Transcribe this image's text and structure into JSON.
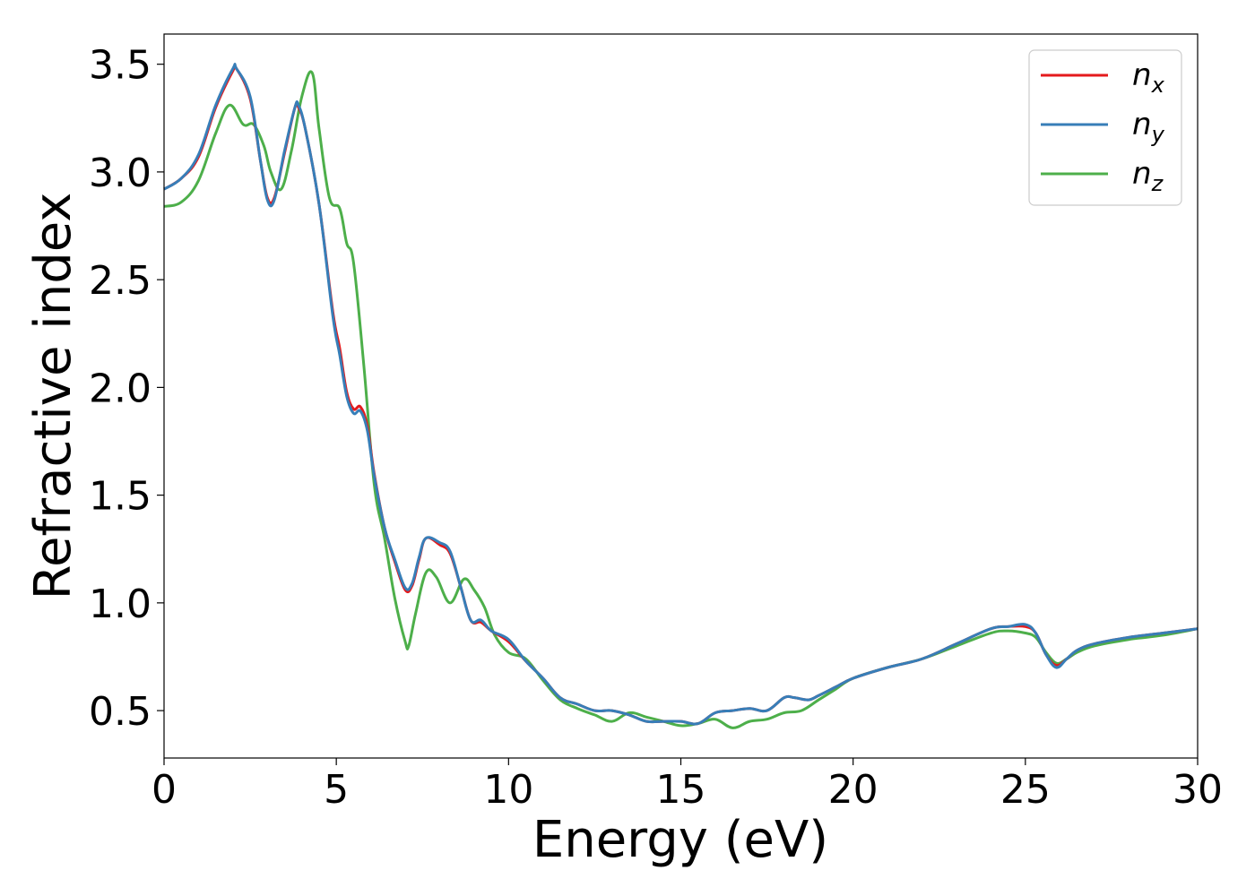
{
  "chart_data": {
    "type": "line",
    "title": "",
    "xlabel": "Energy (eV)",
    "ylabel": "Refractive index",
    "xlim": [
      0,
      30
    ],
    "ylim": [
      0.28,
      3.64
    ],
    "xticks": [
      0,
      5,
      10,
      15,
      20,
      25,
      30
    ],
    "xtick_labels": [
      "0",
      "5",
      "10",
      "15",
      "20",
      "25",
      "30"
    ],
    "yticks": [
      0.5,
      1.0,
      1.5,
      2.0,
      2.5,
      3.0,
      3.5
    ],
    "ytick_labels": [
      "0.5",
      "1.0",
      "1.5",
      "2.0",
      "2.5",
      "3.0",
      "3.5"
    ],
    "grid": false,
    "legend_position": "top-right",
    "series": [
      {
        "name": "n_x",
        "legend_main": "n",
        "legend_sub": "x",
        "color": "#e41a1c",
        "x": [
          0,
          0.5,
          1,
          1.5,
          2,
          2.1,
          2.5,
          2.8,
          3.0,
          3.2,
          3.5,
          3.8,
          3.9,
          4.1,
          4.5,
          4.9,
          5.1,
          5.3,
          5.5,
          5.7,
          5.9,
          6.1,
          6.4,
          6.7,
          7.0,
          7.2,
          7.4,
          7.6,
          8.0,
          8.3,
          8.6,
          8.9,
          9.2,
          9.5,
          10,
          10.5,
          11,
          11.5,
          12,
          12.5,
          13,
          13.5,
          14,
          14.5,
          15,
          15.5,
          16,
          16.5,
          17,
          17.5,
          18,
          18.3,
          18.7,
          19,
          19.5,
          20,
          21,
          22,
          23,
          24,
          24.5,
          25,
          25.3,
          25.6,
          25.9,
          26.2,
          26.5,
          27,
          28,
          29,
          30
        ],
        "y": [
          2.92,
          2.97,
          3.07,
          3.3,
          3.47,
          3.48,
          3.34,
          3.05,
          2.88,
          2.88,
          3.09,
          3.3,
          3.3,
          3.2,
          2.85,
          2.35,
          2.18,
          1.98,
          1.9,
          1.91,
          1.82,
          1.6,
          1.35,
          1.19,
          1.06,
          1.08,
          1.2,
          1.3,
          1.27,
          1.23,
          1.08,
          0.92,
          0.91,
          0.87,
          0.82,
          0.73,
          0.65,
          0.56,
          0.53,
          0.5,
          0.5,
          0.48,
          0.45,
          0.45,
          0.45,
          0.44,
          0.49,
          0.5,
          0.51,
          0.5,
          0.56,
          0.56,
          0.55,
          0.57,
          0.61,
          0.65,
          0.7,
          0.74,
          0.81,
          0.88,
          0.89,
          0.89,
          0.86,
          0.76,
          0.71,
          0.74,
          0.78,
          0.81,
          0.84,
          0.86,
          0.88
        ]
      },
      {
        "name": "n_y",
        "legend_main": "n",
        "legend_sub": "y",
        "color": "#377eb8",
        "x": [
          0,
          0.5,
          1,
          1.5,
          2,
          2.1,
          2.5,
          2.8,
          3.0,
          3.2,
          3.5,
          3.8,
          3.9,
          4.1,
          4.5,
          4.9,
          5.1,
          5.3,
          5.5,
          5.7,
          5.9,
          6.1,
          6.4,
          6.7,
          7.0,
          7.2,
          7.4,
          7.6,
          8.0,
          8.3,
          8.6,
          8.9,
          9.2,
          9.5,
          10,
          10.5,
          11,
          11.5,
          12,
          12.5,
          13,
          13.5,
          14,
          14.5,
          15,
          15.5,
          16,
          16.5,
          17,
          17.5,
          18,
          18.3,
          18.7,
          19,
          19.5,
          20,
          21,
          22,
          23,
          24,
          24.5,
          25,
          25.3,
          25.6,
          25.9,
          26.2,
          26.5,
          27,
          28,
          29,
          30
        ],
        "y": [
          2.92,
          2.97,
          3.08,
          3.31,
          3.48,
          3.48,
          3.35,
          3.05,
          2.87,
          2.87,
          3.1,
          3.3,
          3.31,
          3.2,
          2.85,
          2.33,
          2.15,
          1.96,
          1.88,
          1.89,
          1.8,
          1.59,
          1.35,
          1.2,
          1.07,
          1.09,
          1.21,
          1.3,
          1.28,
          1.24,
          1.08,
          0.92,
          0.92,
          0.87,
          0.83,
          0.73,
          0.65,
          0.56,
          0.53,
          0.5,
          0.5,
          0.48,
          0.45,
          0.45,
          0.45,
          0.44,
          0.49,
          0.5,
          0.51,
          0.5,
          0.56,
          0.56,
          0.55,
          0.57,
          0.61,
          0.65,
          0.7,
          0.74,
          0.81,
          0.88,
          0.89,
          0.9,
          0.86,
          0.76,
          0.7,
          0.74,
          0.78,
          0.81,
          0.84,
          0.86,
          0.88
        ]
      },
      {
        "name": "n_z",
        "legend_main": "n",
        "legend_sub": "z",
        "color": "#4daf4a",
        "x": [
          0,
          0.5,
          1,
          1.5,
          1.9,
          2.3,
          2.6,
          2.9,
          3.1,
          3.4,
          3.7,
          4.0,
          4.3,
          4.5,
          4.8,
          5.1,
          5.3,
          5.5,
          5.8,
          6.1,
          6.4,
          6.7,
          7.0,
          7.1,
          7.3,
          7.6,
          7.9,
          8.3,
          8.7,
          9.0,
          9.3,
          9.6,
          10,
          10.5,
          11,
          11.5,
          12,
          12.5,
          13,
          13.5,
          14,
          14.5,
          15,
          15.5,
          16,
          16.5,
          17,
          17.5,
          18,
          18.5,
          19,
          19.5,
          20,
          21,
          22,
          23,
          24,
          24.5,
          25,
          25.3,
          25.6,
          25.9,
          26.2,
          26.5,
          27,
          28,
          29,
          30
        ],
        "y": [
          2.84,
          2.86,
          2.96,
          3.18,
          3.31,
          3.22,
          3.22,
          3.12,
          3.0,
          2.92,
          3.1,
          3.35,
          3.46,
          3.2,
          2.88,
          2.83,
          2.67,
          2.58,
          2.1,
          1.55,
          1.3,
          1.02,
          0.82,
          0.8,
          0.95,
          1.14,
          1.12,
          1.0,
          1.11,
          1.06,
          0.98,
          0.85,
          0.77,
          0.74,
          0.64,
          0.55,
          0.51,
          0.48,
          0.45,
          0.49,
          0.47,
          0.45,
          0.43,
          0.44,
          0.46,
          0.42,
          0.45,
          0.46,
          0.49,
          0.5,
          0.55,
          0.6,
          0.65,
          0.7,
          0.74,
          0.8,
          0.86,
          0.87,
          0.86,
          0.84,
          0.77,
          0.72,
          0.74,
          0.77,
          0.8,
          0.83,
          0.85,
          0.88
        ]
      }
    ]
  }
}
